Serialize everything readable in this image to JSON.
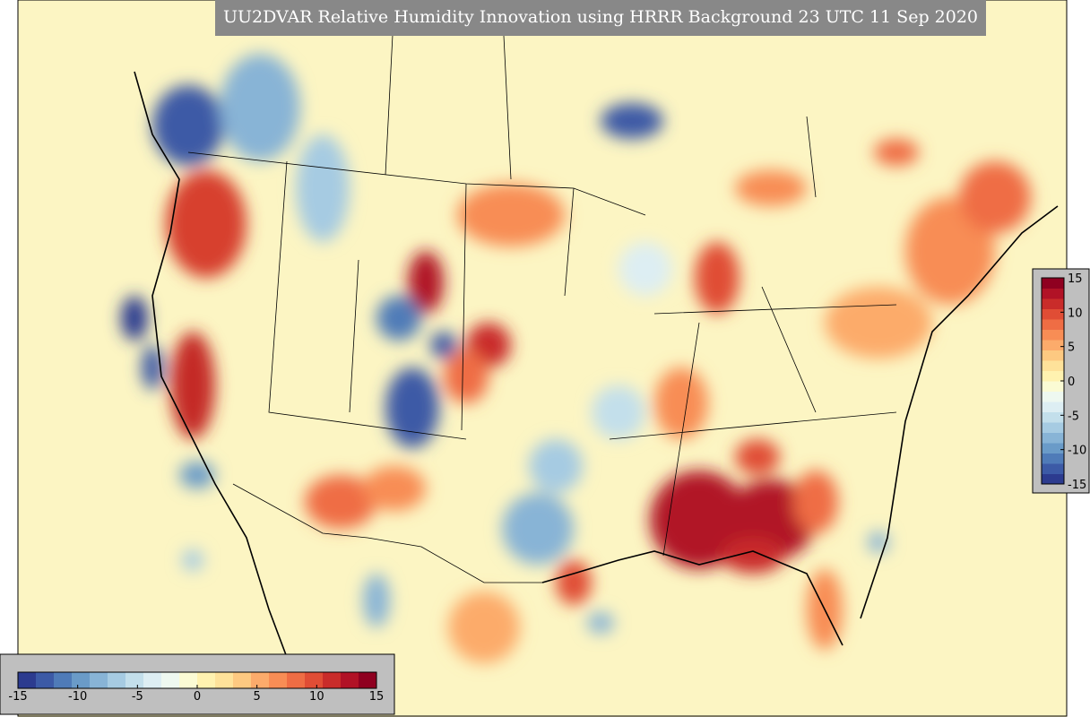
{
  "title": "UU2DVAR Relative Humidity Innovation using HRRR Background 23 UTC 11 Sep 2020",
  "colorbars": [
    {
      "orientation": "horizontal",
      "lim": [
        -15,
        15
      ],
      "ticks": [
        -15,
        -10,
        -5,
        0,
        5,
        10,
        15
      ]
    },
    {
      "orientation": "vertical",
      "lim": [
        -15,
        15
      ],
      "ticks": [
        -15,
        -10,
        -5,
        0,
        5,
        10,
        15
      ]
    }
  ],
  "colors": [
    "#2c3b8f",
    "#3c5aa6",
    "#4f7bb8",
    "#6a9bc8",
    "#88b4d6",
    "#a6cbe2",
    "#c3dfeb",
    "#ddeef3",
    "#eef8f0",
    "#fbfbd4",
    "#fff2b0",
    "#fee29a",
    "#fdc981",
    "#fcab6b",
    "#f88d55",
    "#ef6d44",
    "#e04d35",
    "#c92c2a",
    "#b11226",
    "#8f0020"
  ]
}
